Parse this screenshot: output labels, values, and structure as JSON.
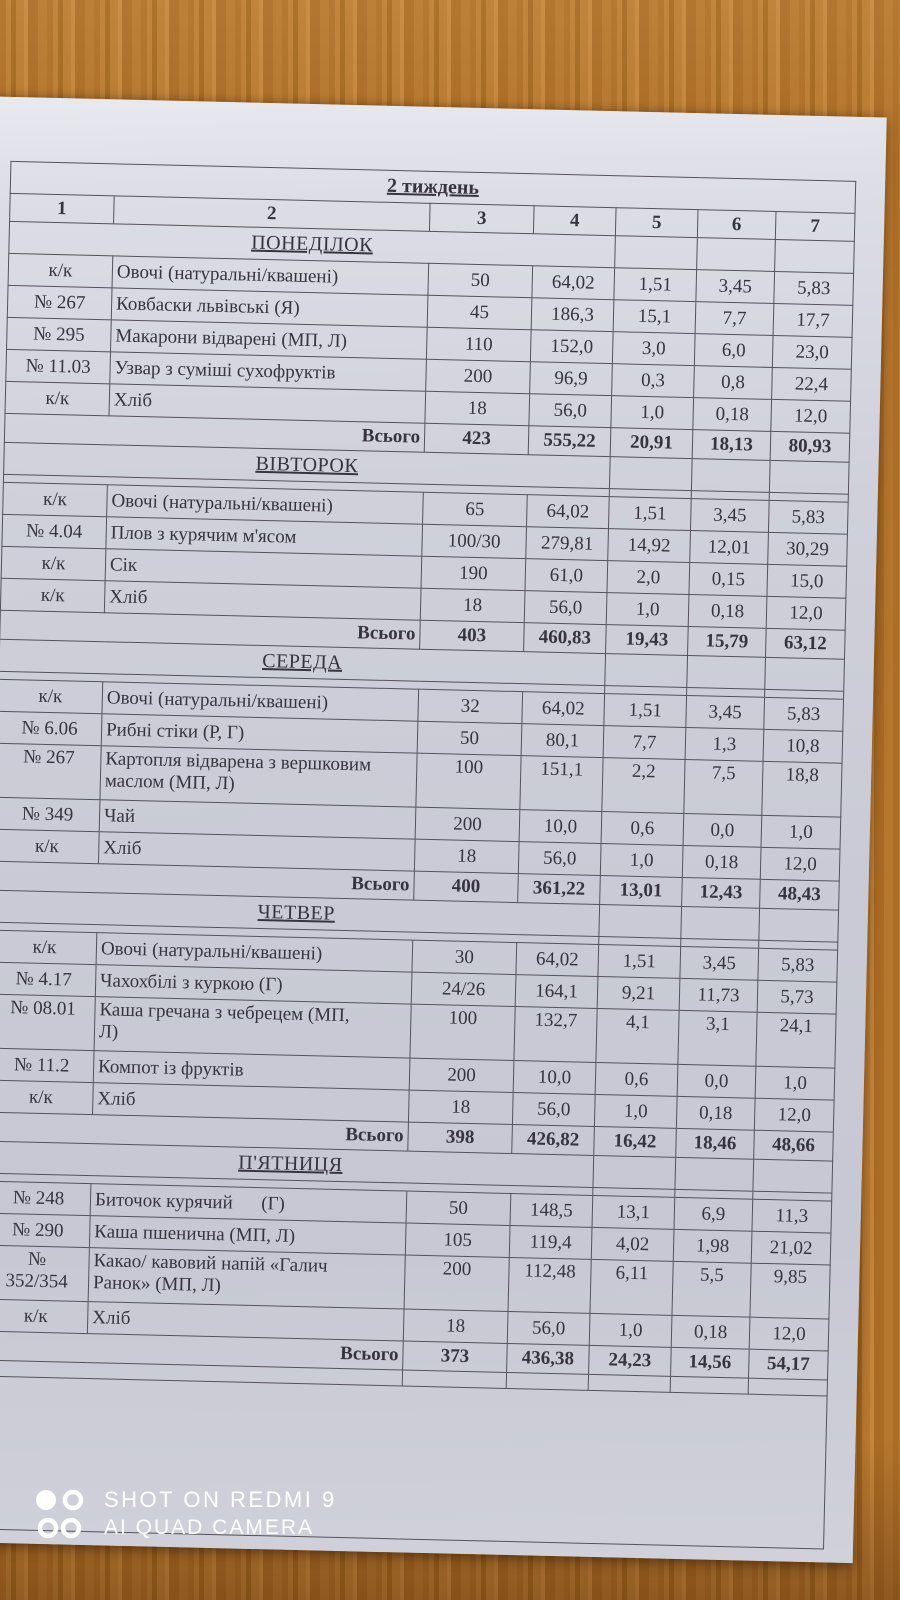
{
  "photo": {
    "watermark": {
      "icon": "xiaomi-ai-camera-icon",
      "line1": "SHOT ON REDMI 9",
      "line2": "AI QUAD CAMERA"
    },
    "colors": {
      "wood": "#b1722b",
      "wood_bottom": "#8f5c24",
      "paper": "#cdced8",
      "table_line": "#55525c",
      "ink": "#37343f",
      "watermark_text": "#ffffff"
    }
  },
  "document": {
    "title": "2  тиждень",
    "columns": [
      "1",
      "2",
      "3",
      "4",
      "5",
      "6",
      "7"
    ],
    "total_label": "Всього",
    "days": [
      {
        "name": "ПОНЕДІЛОК",
        "spacer_after_name": false,
        "rows": [
          {
            "code": "к/к",
            "dish": "Овочі (натуральні/квашені)",
            "c3": "50",
            "c4": "64,02",
            "c5": "1,51",
            "c6": "3,45",
            "c7": "5,83"
          },
          {
            "code": "№ 267",
            "dish": "Ковбаски львівські (Я)",
            "c3": "45",
            "c4": "186,3",
            "c5": "15,1",
            "c6": "7,7",
            "c7": "17,7"
          },
          {
            "code": "№ 295",
            "dish": "Макарони відварені (МП, Л)",
            "c3": "110",
            "c4": "152,0",
            "c5": "3,0",
            "c6": "6,0",
            "c7": "23,0"
          },
          {
            "code": "№ 11.03",
            "dish": "Узвар з суміші сухофруктів",
            "c3": "200",
            "c4": "96,9",
            "c5": "0,3",
            "c6": "0,8",
            "c7": "22,4"
          },
          {
            "code": "к/к",
            "dish": "Хліб",
            "c3": "18",
            "c4": "56,0",
            "c5": "1,0",
            "c6": "0,18",
            "c7": "12,0"
          }
        ],
        "total": {
          "c3": "423",
          "c4": "555,22",
          "c5": "20,91",
          "c6": "18,13",
          "c7": "80,93"
        }
      },
      {
        "name": "ВІВТОРОК",
        "spacer_after_name": true,
        "rows": [
          {
            "code": "к/к",
            "dish": "Овочі (натуральні/квашені)",
            "c3": "65",
            "c4": "64,02",
            "c5": "1,51",
            "c6": "3,45",
            "c7": "5,83"
          },
          {
            "code": "№ 4.04",
            "dish": "Плов з курячим м'ясом",
            "c3": "100/30",
            "c4": "279,81",
            "c5": "14,92",
            "c6": "12,01",
            "c7": "30,29"
          },
          {
            "code": "к/к",
            "dish": "Сік",
            "c3": "190",
            "c4": "61,0",
            "c5": "2,0",
            "c6": "0,15",
            "c7": "15,0"
          },
          {
            "code": "к/к",
            "dish": "Хліб",
            "c3": "18",
            "c4": "56,0",
            "c5": "1,0",
            "c6": "0,18",
            "c7": "12,0"
          }
        ],
        "total": {
          "c3": "403",
          "c4": "460,83",
          "c5": "19,43",
          "c6": "15,79",
          "c7": "63,12"
        }
      },
      {
        "name": "СЕРЕДА",
        "spacer_after_name": true,
        "rows": [
          {
            "code": "к/к",
            "dish": "Овочі (натуральні/квашені)",
            "c3": "32",
            "c4": "64,02",
            "c5": "1,51",
            "c6": "3,45",
            "c7": "5,83"
          },
          {
            "code": "№ 6.06",
            "dish": "Рибні стіки (Р, Г)",
            "c3": "50",
            "c4": "80,1",
            "c5": "7,7",
            "c6": "1,3",
            "c7": "10,8"
          },
          {
            "code": "№ 267",
            "dish": "Картопля відварена з вершковим\nмаслом (МП, Л)",
            "c3": "100",
            "c4": "151,1",
            "c5": "2,2",
            "c6": "7,5",
            "c7": "18,8"
          },
          {
            "code": "№ 349",
            "dish": "Чай",
            "c3": "200",
            "c4": "10,0",
            "c5": "0,6",
            "c6": "0,0",
            "c7": "1,0"
          },
          {
            "code": "к/к",
            "dish": "Хліб",
            "c3": "18",
            "c4": "56,0",
            "c5": "1,0",
            "c6": "0,18",
            "c7": "12,0"
          }
        ],
        "total": {
          "c3": "400",
          "c4": "361,22",
          "c5": "13,01",
          "c6": "12,43",
          "c7": "48,43"
        }
      },
      {
        "name": "ЧЕТВЕР",
        "spacer_after_name": true,
        "rows": [
          {
            "code": "к/к",
            "dish": "Овочі (натуральні/квашені)",
            "c3": "30",
            "c4": "64,02",
            "c5": "1,51",
            "c6": "3,45",
            "c7": "5,83"
          },
          {
            "code": "№ 4.17",
            "dish": "Чахохбілі з куркою (Г)",
            "c3": "24/26",
            "c4": "164,1",
            "c5": "9,21",
            "c6": "11,73",
            "c7": "5,73"
          },
          {
            "code": "№ 08.01",
            "dish": "Каша гречана з чебрецем (МП,\nЛ)",
            "c3": "100",
            "c4": "132,7",
            "c5": "4,1",
            "c6": "3,1",
            "c7": "24,1"
          },
          {
            "code": "№ 11.2",
            "dish": "Компот із фруктів",
            "c3": "200",
            "c4": "10,0",
            "c5": "0,6",
            "c6": "0,0",
            "c7": "1,0"
          },
          {
            "code": "к/к",
            "dish": "Хліб",
            "c3": "18",
            "c4": "56,0",
            "c5": "1,0",
            "c6": "0,18",
            "c7": "12,0"
          }
        ],
        "total": {
          "c3": "398",
          "c4": "426,82",
          "c5": "16,42",
          "c6": "18,46",
          "c7": "48,66"
        }
      },
      {
        "name": "П'ЯТНИЦЯ",
        "spacer_after_name": true,
        "rows": [
          {
            "code": "№ 248",
            "dish": "Биточок курячий      (Г)",
            "c3": "50",
            "c4": "148,5",
            "c5": "13,1",
            "c6": "6,9",
            "c7": "11,3"
          },
          {
            "code": "№ 290",
            "dish": "Каша пшенична (МП, Л)",
            "c3": "105",
            "c4": "119,4",
            "c5": "4,02",
            "c6": "1,98",
            "c7": "21,02"
          },
          {
            "code": "№\n352/354",
            "dish": "Какао/ кавовий напій «Галич\nРанок» (МП, Л)",
            "c3": "200",
            "c4": "112,48",
            "c5": "6,11",
            "c6": "5,5",
            "c7": "9,85"
          },
          {
            "code": "к/к",
            "dish": "Хліб",
            "c3": "18",
            "c4": "56,0",
            "c5": "1,0",
            "c6": "0,18",
            "c7": "12,0"
          }
        ],
        "total": {
          "c3": "373",
          "c4": "436,38",
          "c5": "24,23",
          "c6": "14,56",
          "c7": "54,17"
        }
      }
    ]
  }
}
